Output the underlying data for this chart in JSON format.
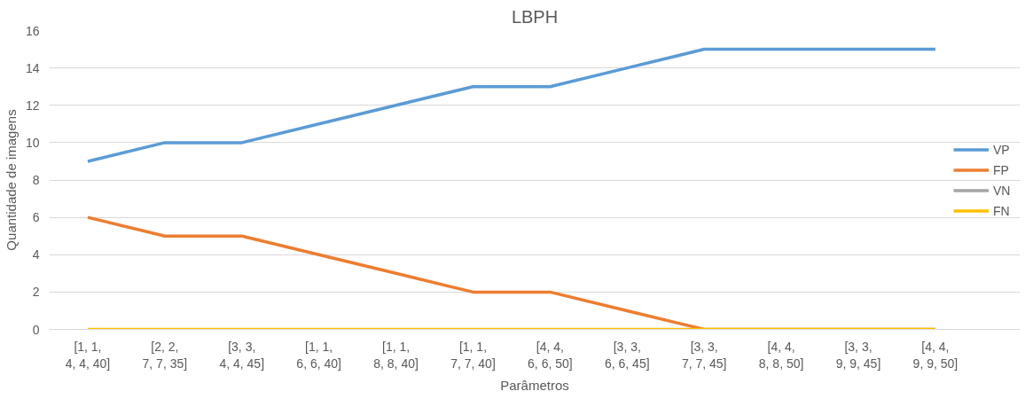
{
  "chart_data": {
    "type": "line",
    "title": "LBPH",
    "xlabel": "Parâmetros",
    "ylabel": "Quantidade de imagens",
    "categories": [
      "[1, 1, 4, 4, 40]",
      "[2, 2, 7, 7, 35]",
      "[3, 3, 4, 4, 45]",
      "[1, 1, 6, 6, 40]",
      "[1, 1, 8, 8, 40]",
      "[1, 1, 7, 7, 40]",
      "[4, 4, 6, 6, 50]",
      "[3, 3, 6, 6, 45]",
      "[3, 3, 7, 7, 45]",
      "[4, 4, 8, 8, 50]",
      "[3, 3, 9, 9, 45]",
      "[4, 4, 9, 9, 50]"
    ],
    "series": [
      {
        "name": "VP",
        "color": "#5b9bd5",
        "values": [
          9,
          10,
          10,
          11,
          12,
          13,
          13,
          14,
          15,
          15,
          15,
          15
        ]
      },
      {
        "name": "FP",
        "color": "#ed7d31",
        "values": [
          6,
          5,
          5,
          4,
          3,
          2,
          2,
          1,
          0,
          0,
          0,
          0
        ]
      },
      {
        "name": "VN",
        "color": "#a5a5a5",
        "values": [
          null,
          null,
          null,
          null,
          null,
          null,
          null,
          null,
          null,
          null,
          null,
          null
        ]
      },
      {
        "name": "FN",
        "color": "#ffc000",
        "values": [
          0,
          0,
          0,
          0,
          0,
          0,
          0,
          0,
          0,
          0,
          0,
          0
        ]
      }
    ],
    "ylim": [
      0,
      16
    ],
    "yticks": [
      0,
      2,
      4,
      6,
      8,
      10,
      12,
      14,
      16
    ],
    "grid": "y",
    "legend": "right",
    "marker": "none",
    "line_style": "solid"
  }
}
